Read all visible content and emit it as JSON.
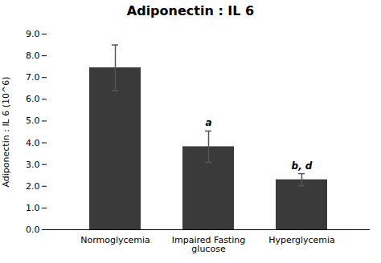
{
  "chart_data": {
    "type": "bar",
    "title": "Adiponectin : IL 6",
    "ylabel": "Adiponectin : IL 6 (10^6)",
    "categories": [
      "Normoglycemia",
      "Impaired Fasting\nglucose",
      "Hyperglycemia"
    ],
    "values": [
      7.45,
      3.82,
      2.3
    ],
    "errors": [
      1.05,
      0.72,
      0.28
    ],
    "color": "#3a3a3a",
    "ylim": [
      0.0,
      9.0
    ],
    "yticks": [
      {
        "value": 0,
        "label": "0.0"
      },
      {
        "value": 1,
        "label": "1.0"
      },
      {
        "value": 2,
        "label": "2.0"
      },
      {
        "value": 3,
        "label": "3.0"
      },
      {
        "value": 4,
        "label": "4.0"
      },
      {
        "value": 5,
        "label": "5.0"
      },
      {
        "value": 6,
        "label": "6.0"
      },
      {
        "value": 7,
        "label": "7.0"
      },
      {
        "value": 8,
        "label": "8.0"
      },
      {
        "value": 9,
        "label": "9.0"
      }
    ],
    "annotations": [
      {
        "text": "a",
        "category": "Impaired Fasting\nglucose"
      },
      {
        "text": "b, d",
        "category": "Hyperglycemia"
      }
    ],
    "grid": false
  }
}
